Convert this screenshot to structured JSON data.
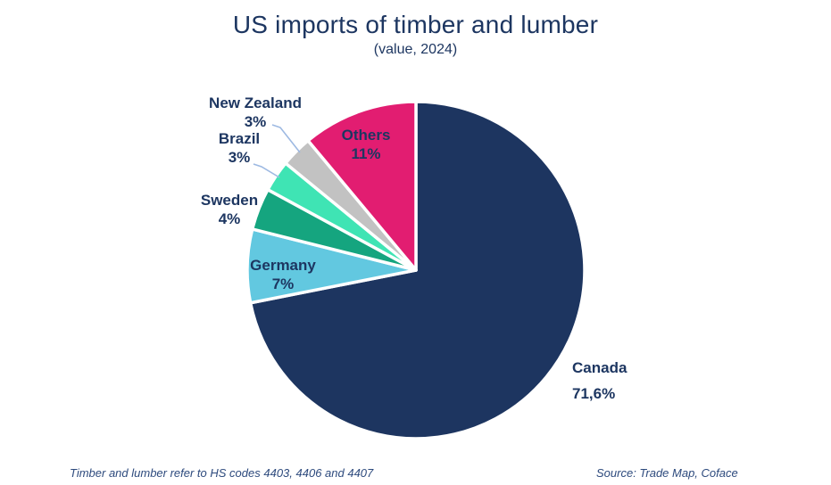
{
  "title": "US imports of timber and lumber",
  "subtitle": "(value, 2024)",
  "footer": {
    "note": "Timber and lumber refer to HS codes 4403, 4406 and 4407",
    "source": "Source: Trade Map, Coface"
  },
  "colors": {
    "text_navy": "#1d3661",
    "footer_text": "#2d4a7d",
    "leader_line": "#9db9e2",
    "slice_border": "#ffffff",
    "background": "#ffffff"
  },
  "chart_data": {
    "type": "pie",
    "title": "US imports of timber and lumber",
    "subtitle": "(value, 2024)",
    "unit": "%",
    "start_angle_deg": 0,
    "direction": "clockwise",
    "legend_position": "none (direct labels on/next to slices)",
    "slices": [
      {
        "name": "Canada",
        "value": 71.6,
        "pct_label": "71,6%",
        "color": "#1d3560",
        "label_placement": "outside-right"
      },
      {
        "name": "Germany",
        "value": 7,
        "pct_label": "7%",
        "color": "#62c8e0",
        "label_placement": "inside"
      },
      {
        "name": "Sweden",
        "value": 4,
        "pct_label": "4%",
        "color": "#15a57f",
        "label_placement": "outside-left"
      },
      {
        "name": "Brazil",
        "value": 3,
        "pct_label": "3%",
        "color": "#3fe4b4",
        "label_placement": "outside-left with leader line"
      },
      {
        "name": "New Zealand",
        "value": 3,
        "pct_label": "3%",
        "color": "#c2c2c2",
        "label_placement": "outside-left with leader line"
      },
      {
        "name": "Others",
        "value": 11,
        "pct_label": "11%",
        "color": "#e21d71",
        "label_placement": "inside"
      }
    ]
  }
}
